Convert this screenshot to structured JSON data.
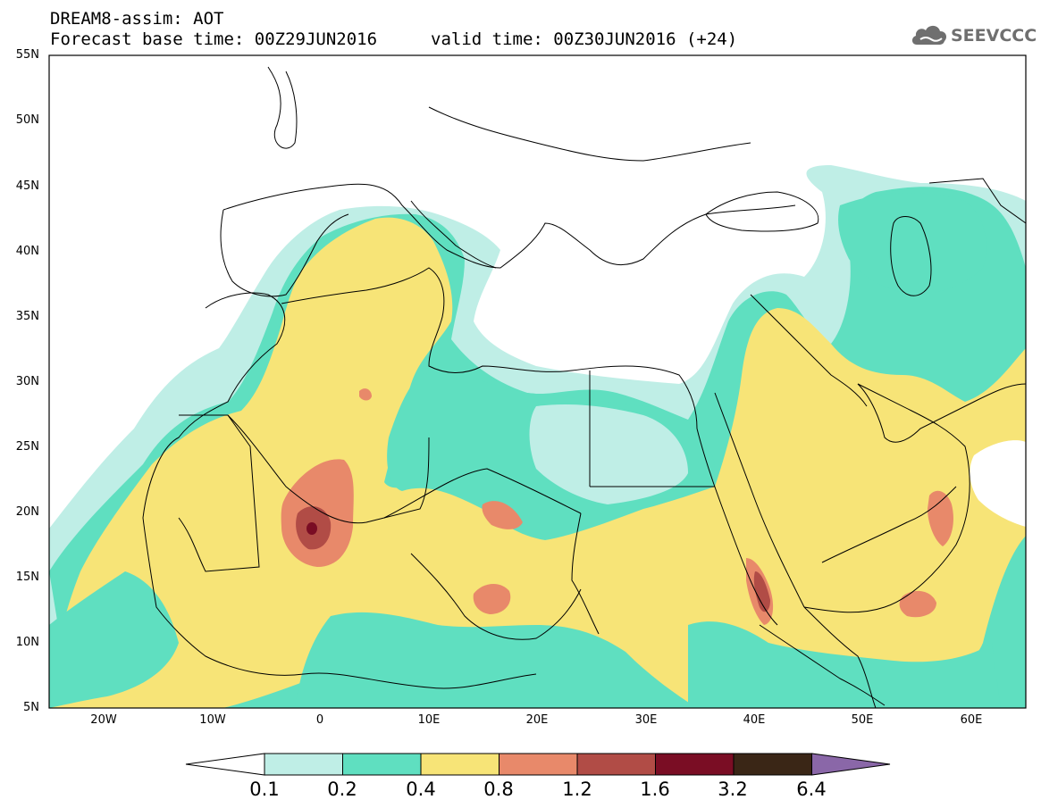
{
  "header": {
    "line1": "DREAM8-assim: AOT",
    "line2": "Forecast base time: 00Z29JUN2016",
    "line3": "valid time: 00Z30JUN2016 (+24)",
    "logo_text": "SEEVCCC"
  },
  "axes": {
    "lat_labels": [
      "55N",
      "50N",
      "45N",
      "40N",
      "35N",
      "30N",
      "25N",
      "20N",
      "15N",
      "10N",
      "5N"
    ],
    "lon_labels": [
      "20W",
      "10W",
      "0",
      "10E",
      "20E",
      "30E",
      "40E",
      "50E",
      "60E"
    ]
  },
  "legend": {
    "boundaries": [
      "0.1",
      "0.2",
      "0.4",
      "0.8",
      "1.2",
      "1.6",
      "3.2",
      "6.4"
    ],
    "colors": [
      "#ffffff",
      "#bfeee6",
      "#5fdfc0",
      "#f7e477",
      "#e8896a",
      "#b14c46",
      "#7a0d24",
      "#3a2616",
      "#8a67a8"
    ]
  },
  "colors": {
    "aot_0.1_0.2": "#bfeee6",
    "aot_0.2_0.4": "#5fdfc0",
    "aot_0.4_0.8": "#f7e477",
    "aot_0.8_1.2": "#e8896a",
    "aot_1.2_1.6": "#b14c46",
    "aot_1.6_3.2": "#7a0d24",
    "aot_3.2_6.4": "#3a2616",
    "aot_above_6.4": "#8a67a8"
  }
}
